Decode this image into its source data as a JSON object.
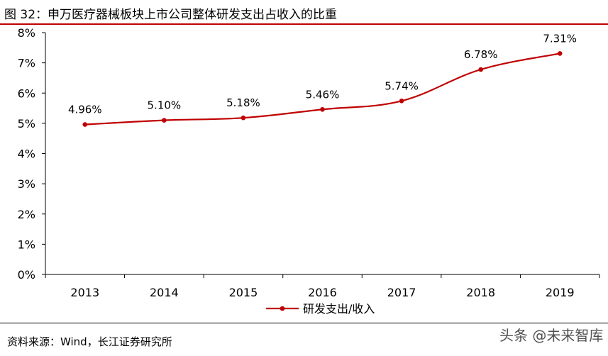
{
  "figure": {
    "title": "图 32：申万医疗器械板块上市公司整体研发支出占收入的比重",
    "source": "资料来源：Wind，长江证券研究所",
    "watermark": "头条 @未来智库"
  },
  "chart_data": {
    "type": "line",
    "x": [
      "2013",
      "2014",
      "2015",
      "2016",
      "2017",
      "2018",
      "2019"
    ],
    "series": [
      {
        "name": "研发支出/收入",
        "values": [
          4.96,
          5.1,
          5.18,
          5.46,
          5.74,
          6.78,
          7.31
        ],
        "labels": [
          "4.96%",
          "5.10%",
          "5.18%",
          "5.46%",
          "5.74%",
          "6.78%",
          "7.31%"
        ],
        "color": "#c00000"
      }
    ],
    "ylim": [
      0,
      8
    ],
    "yticks": [
      0,
      1,
      2,
      3,
      4,
      5,
      6,
      7,
      8
    ],
    "ytick_labels": [
      "0%",
      "1%",
      "2%",
      "3%",
      "4%",
      "5%",
      "6%",
      "7%",
      "8%"
    ],
    "grid": false,
    "legend": "bottom-center"
  }
}
